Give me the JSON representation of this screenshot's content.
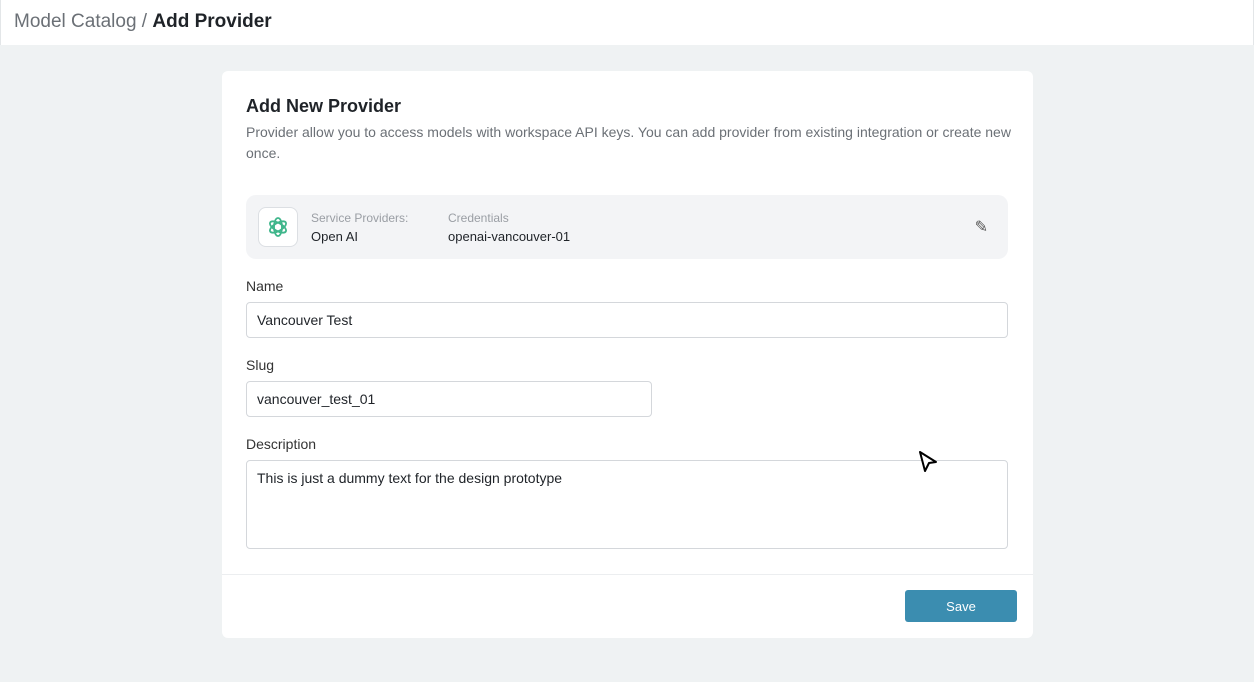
{
  "breadcrumb": {
    "parent": "Model Catalog",
    "separator": " / ",
    "current": "Add Provider"
  },
  "form": {
    "title": "Add New Provider",
    "description": "Provider allow you to access models with workspace API keys. You can add provider from existing integration or create new once.",
    "provider": {
      "service_label": "Service Providers:",
      "service_value": "Open AI",
      "credentials_label": "Credentials",
      "credentials_value": "openai-vancouver-01",
      "logo_icon": "openai-logo-icon",
      "edit_icon": "pencil-icon"
    },
    "name_label": "Name",
    "name_value": "Vancouver Test",
    "slug_label": "Slug",
    "slug_value": "vancouver_test_01",
    "description_label": "Description",
    "description_value": "This is just a dummy text for the design prototype",
    "save_label": "Save"
  },
  "colors": {
    "accent": "#3b8db0",
    "openai_green": "#3fb68b"
  }
}
